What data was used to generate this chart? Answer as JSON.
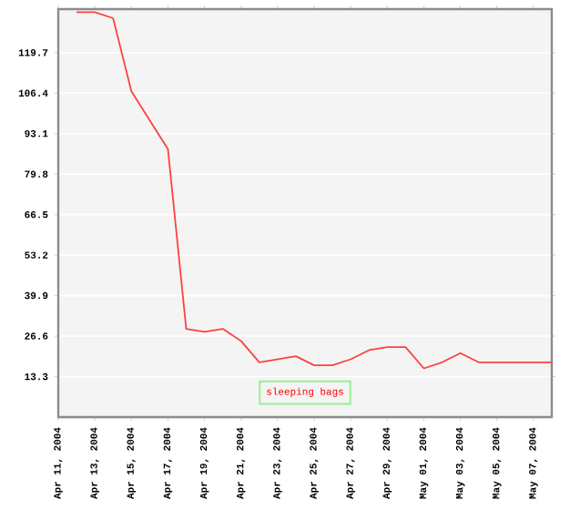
{
  "chart_data": {
    "type": "line",
    "x": [
      "2004-04-12",
      "2004-04-13",
      "2004-04-14",
      "2004-04-15",
      "2004-04-17",
      "2004-04-18",
      "2004-04-19",
      "2004-04-20",
      "2004-04-21",
      "2004-04-22",
      "2004-04-24",
      "2004-04-25",
      "2004-04-26",
      "2004-04-27",
      "2004-04-28",
      "2004-04-29",
      "2004-04-30",
      "2004-05-01",
      "2004-05-02",
      "2004-05-03",
      "2004-05-04",
      "2004-05-08"
    ],
    "series": [
      {
        "name": "sleeping bags",
        "color": "#ff4040",
        "values": [
          133,
          133,
          131,
          107,
          88,
          29,
          28,
          29,
          25,
          18,
          20,
          17,
          17,
          19,
          22,
          23,
          23,
          16,
          18,
          21,
          18,
          18
        ]
      }
    ],
    "xlim": [
      "2004-04-11",
      "2004-05-08"
    ],
    "xticks": [
      {
        "value": "2004-04-11",
        "label": "Apr 11, 2004"
      },
      {
        "value": "2004-04-13",
        "label": "Apr 13, 2004"
      },
      {
        "value": "2004-04-15",
        "label": "Apr 15, 2004"
      },
      {
        "value": "2004-04-17",
        "label": "Apr 17, 2004"
      },
      {
        "value": "2004-04-19",
        "label": "Apr 19, 2004"
      },
      {
        "value": "2004-04-21",
        "label": "Apr 21, 2004"
      },
      {
        "value": "2004-04-23",
        "label": "Apr 23, 2004"
      },
      {
        "value": "2004-04-25",
        "label": "Apr 25, 2004"
      },
      {
        "value": "2004-04-27",
        "label": "Apr 27, 2004"
      },
      {
        "value": "2004-04-29",
        "label": "Apr 29, 2004"
      },
      {
        "value": "2004-05-01",
        "label": "May 01, 2004"
      },
      {
        "value": "2004-05-03",
        "label": "May 03, 2004"
      },
      {
        "value": "2004-05-05",
        "label": "May 05, 2004"
      },
      {
        "value": "2004-05-07",
        "label": "May 07, 2004"
      }
    ],
    "ylim": [
      0,
      134
    ],
    "yticks": [
      13.3,
      26.6,
      39.9,
      53.2,
      66.5,
      79.8,
      93.1,
      106.4,
      119.7
    ],
    "grid": "y",
    "legend": "bottom"
  }
}
